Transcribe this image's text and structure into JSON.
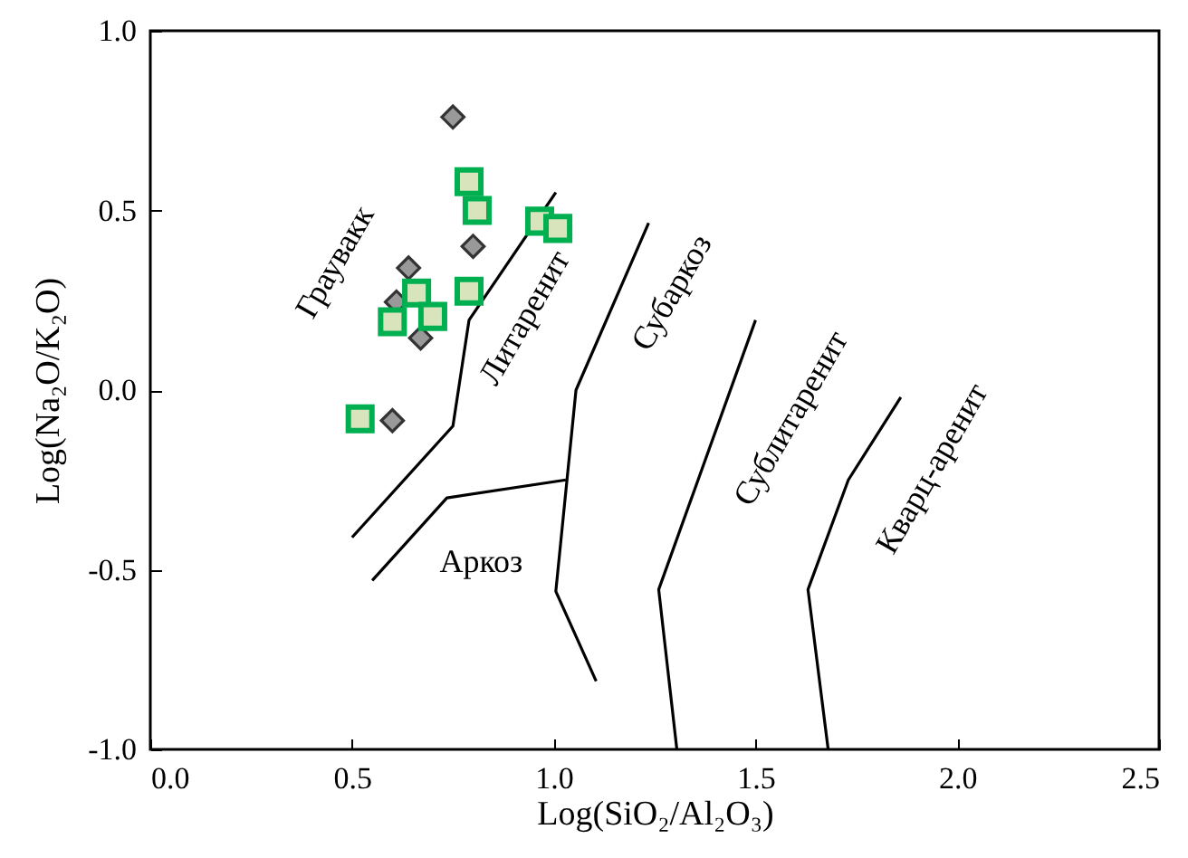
{
  "chart_data": {
    "type": "scatter",
    "xlabel": "Log(SiO₂/Al₂O₃)",
    "ylabel": "Log(Na₂O/K₂O)",
    "xlim": [
      0,
      2.5
    ],
    "ylim": [
      -1,
      1
    ],
    "xticks": [
      {
        "value": 0,
        "label": "0.0"
      },
      {
        "value": 0.5,
        "label": "0.5"
      },
      {
        "value": 1,
        "label": "1.0"
      },
      {
        "value": 1.5,
        "label": "1.5"
      },
      {
        "value": 2,
        "label": "2.0"
      },
      {
        "value": 2.5,
        "label": "2.5"
      }
    ],
    "yticks": [
      {
        "value": -1,
        "label": "-1.0"
      },
      {
        "value": -0.5,
        "label": "-0.5"
      },
      {
        "value": 0,
        "label": "0.0"
      },
      {
        "value": 0.5,
        "label": "0.5"
      },
      {
        "value": 1,
        "label": "1.0"
      }
    ],
    "grid": false,
    "annotations": [
      "Граувакк",
      "Литаренит",
      "Субаркоз",
      "Сублитаренит",
      "Кварц-аренит",
      "Аркоз"
    ],
    "series": [
      {
        "type": "line",
        "color": "#000000",
        "marker": "none",
        "x": [
          0.5,
          0.75,
          0.79,
          1.005
        ],
        "values": [
          -0.41,
          -0.1,
          0.195,
          0.55
        ]
      },
      {
        "type": "line",
        "color": "#000000",
        "marker": "none",
        "x": [
          0.55,
          0.735,
          1.03
        ],
        "values": [
          -0.53,
          -0.3,
          -0.25
        ]
      },
      {
        "type": "line",
        "color": "#000000",
        "marker": "none",
        "x": [
          1.235,
          1.055,
          1.005,
          1.105
        ],
        "values": [
          0.465,
          0.0,
          -0.56,
          -0.81
        ]
      },
      {
        "type": "line",
        "color": "#000000",
        "marker": "none",
        "x": [
          1.5,
          1.26,
          1.305
        ],
        "values": [
          0.195,
          -0.555,
          -1.0
        ]
      },
      {
        "type": "line",
        "color": "#000000",
        "marker": "none",
        "x": [
          1.86,
          1.73,
          1.63,
          1.68
        ],
        "values": [
          -0.02,
          -0.25,
          -0.555,
          -1.0
        ]
      },
      {
        "color": "#999999",
        "marker": "diamond",
        "x": [
          0.75,
          0.8,
          0.64,
          0.61,
          0.67,
          0.6
        ],
        "values": [
          0.76,
          0.4,
          0.34,
          0.245,
          0.145,
          -0.085
        ]
      },
      {
        "color": "#d8e4bc",
        "marker": "square",
        "x": [
          0.79,
          0.81,
          0.965,
          1.01,
          0.79,
          0.66,
          0.7,
          0.6,
          0.52
        ],
        "values": [
          0.58,
          0.5,
          0.47,
          0.45,
          0.275,
          0.27,
          0.205,
          0.19,
          -0.08
        ]
      }
    ]
  }
}
